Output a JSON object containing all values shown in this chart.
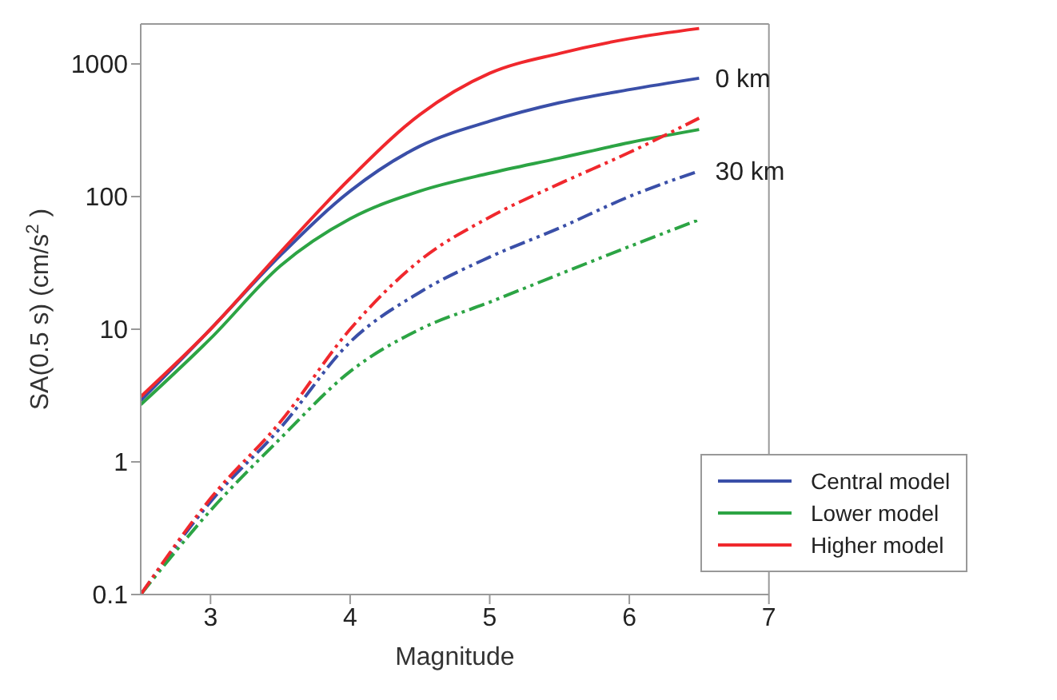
{
  "chart_data": {
    "type": "line",
    "xlabel": "Magnitude",
    "ylabel": "SA(0.5 s) (cm/s$^{2}$)",
    "x": [
      2.5,
      3,
      3.5,
      4,
      4.5,
      5,
      5.5,
      6,
      6.5
    ],
    "series": [
      {
        "name": "Central model",
        "color": "#3a4fa8",
        "line_style": "solid",
        "values": [
          2.9,
          10,
          36,
          110,
          240,
          370,
          510,
          640,
          780
        ]
      },
      {
        "name": "Lower model",
        "color": "#2ca444",
        "line_style": "solid",
        "values": [
          2.7,
          8.5,
          30,
          68,
          110,
          150,
          195,
          255,
          320
        ]
      },
      {
        "name": "Higher model",
        "color": "#f0282d",
        "line_style": "solid",
        "values": [
          3.1,
          10,
          38,
          137,
          415,
          850,
          1200,
          1550,
          1850
        ]
      },
      {
        "color": "#3a4fa8",
        "line_style": "dashed",
        "values": [
          0.1,
          0.5,
          1.8,
          8,
          19,
          35,
          58,
          100,
          156
        ]
      },
      {
        "color": "#2ca444",
        "line_style": "dashed",
        "values": [
          0.1,
          0.43,
          1.5,
          4.8,
          10,
          16,
          26,
          42,
          67
        ]
      },
      {
        "color": "#f0282d",
        "line_style": "dashed",
        "values": [
          0.1,
          0.53,
          2,
          10,
          33,
          70,
          125,
          215,
          390
        ]
      }
    ],
    "annotations": [
      {
        "text": "0 km",
        "x": 6.5,
        "y": 780
      },
      {
        "text": "30 km",
        "x": 6.5,
        "y": 156
      }
    ],
    "xlim": [
      2.5,
      7
    ],
    "xticks": [
      3,
      4,
      5,
      6,
      7
    ],
    "ylim": [
      0.1,
      2000
    ],
    "yticks": [
      0.1,
      1,
      10,
      100,
      1000
    ],
    "log": "y",
    "grid": false,
    "legend": "bottom right",
    "marker": "none"
  }
}
